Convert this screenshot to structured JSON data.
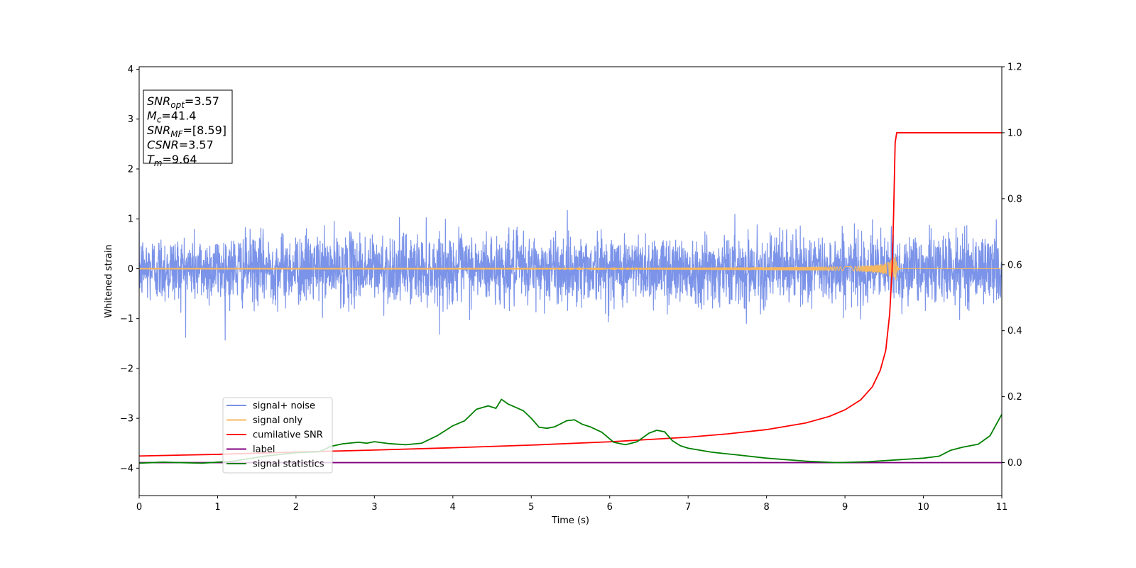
{
  "chart_data": {
    "type": "line",
    "xlabel": "Time (s)",
    "ylabel": "Whitened strain",
    "xlim": [
      0,
      11
    ],
    "ylim_left": [
      -4.55,
      4.05
    ],
    "ylim_right": [
      -0.1,
      1.2
    ],
    "x_ticks": [
      "0",
      "1",
      "2",
      "3",
      "4",
      "5",
      "6",
      "7",
      "8",
      "9",
      "10",
      "11"
    ],
    "y_ticks_left": [
      "4",
      "3",
      "2",
      "1",
      "0",
      "−1",
      "−2",
      "−3",
      "−4"
    ],
    "y_ticks_right": [
      "1.2",
      "1.0",
      "0.8",
      "0.6",
      "0.4",
      "0.2",
      "0.0"
    ],
    "legend_placement": "lower-left",
    "grid": false,
    "annotation": {
      "lines": [
        {
          "sym": "SNR",
          "sub": "opt",
          "val": "=3.57"
        },
        {
          "sym": "M",
          "sub": "c",
          "val": "=41.4"
        },
        {
          "sym": "SNR",
          "sub": "MF",
          "val": "=[8.59]"
        },
        {
          "sym": "CSNR",
          "sub": "",
          "val": "=3.57"
        },
        {
          "sym": "T",
          "sub": "m",
          "val": "=9.64"
        }
      ]
    },
    "series": [
      {
        "name": "signal+ noise",
        "axis": "left",
        "color": "#7b93e8",
        "kind": "noise",
        "typical_amplitude": 0.55,
        "peak_amplitude": 1.55
      },
      {
        "name": "signal only",
        "axis": "left",
        "color": "#f5b860",
        "kind": "chirp",
        "merger_time": 9.64,
        "peak_amplitude": 0.35
      },
      {
        "name": "cumilative SNR",
        "axis": "right",
        "color": "#ff0000",
        "kind": "line",
        "x": [
          0,
          1,
          2,
          3,
          4,
          5,
          6,
          7,
          7.5,
          8,
          8.5,
          8.8,
          9.0,
          9.2,
          9.35,
          9.45,
          9.52,
          9.57,
          9.6,
          9.62,
          9.64,
          9.66,
          11
        ],
        "y": [
          0.02,
          0.025,
          0.032,
          0.038,
          0.045,
          0.053,
          0.063,
          0.077,
          0.087,
          0.1,
          0.12,
          0.14,
          0.16,
          0.19,
          0.23,
          0.28,
          0.34,
          0.45,
          0.58,
          0.75,
          0.97,
          1.0,
          1.0
        ]
      },
      {
        "name": "label",
        "axis": "right",
        "color": "#800080",
        "kind": "line",
        "x": [
          0,
          11
        ],
        "y": [
          0.0,
          0.0
        ]
      },
      {
        "name": "signal statistics",
        "axis": "left",
        "color": "#008000",
        "kind": "line",
        "x": [
          0,
          0.3,
          0.8,
          1.2,
          1.6,
          2.0,
          2.3,
          2.45,
          2.6,
          2.8,
          2.9,
          3.0,
          3.2,
          3.4,
          3.6,
          3.8,
          4.0,
          4.15,
          4.3,
          4.45,
          4.55,
          4.62,
          4.7,
          4.8,
          4.9,
          5.0,
          5.1,
          5.2,
          5.3,
          5.45,
          5.55,
          5.65,
          5.75,
          5.9,
          6.05,
          6.2,
          6.35,
          6.5,
          6.6,
          6.7,
          6.8,
          6.9,
          7.0,
          7.3,
          7.6,
          8.0,
          8.5,
          8.9,
          9.3,
          9.7,
          10.0,
          10.2,
          10.35,
          10.5,
          10.7,
          10.85,
          11.0
        ],
        "y": [
          -3.9,
          -3.88,
          -3.9,
          -3.86,
          -3.76,
          -3.69,
          -3.67,
          -3.56,
          -3.51,
          -3.48,
          -3.5,
          -3.47,
          -3.51,
          -3.53,
          -3.5,
          -3.35,
          -3.15,
          -3.05,
          -2.82,
          -2.75,
          -2.8,
          -2.62,
          -2.71,
          -2.78,
          -2.85,
          -3.0,
          -3.18,
          -3.2,
          -3.17,
          -3.05,
          -3.03,
          -3.12,
          -3.17,
          -3.28,
          -3.48,
          -3.53,
          -3.47,
          -3.3,
          -3.24,
          -3.27,
          -3.45,
          -3.55,
          -3.6,
          -3.68,
          -3.73,
          -3.8,
          -3.86,
          -3.89,
          -3.87,
          -3.83,
          -3.8,
          -3.76,
          -3.64,
          -3.58,
          -3.52,
          -3.35,
          -2.92
        ]
      }
    ]
  }
}
